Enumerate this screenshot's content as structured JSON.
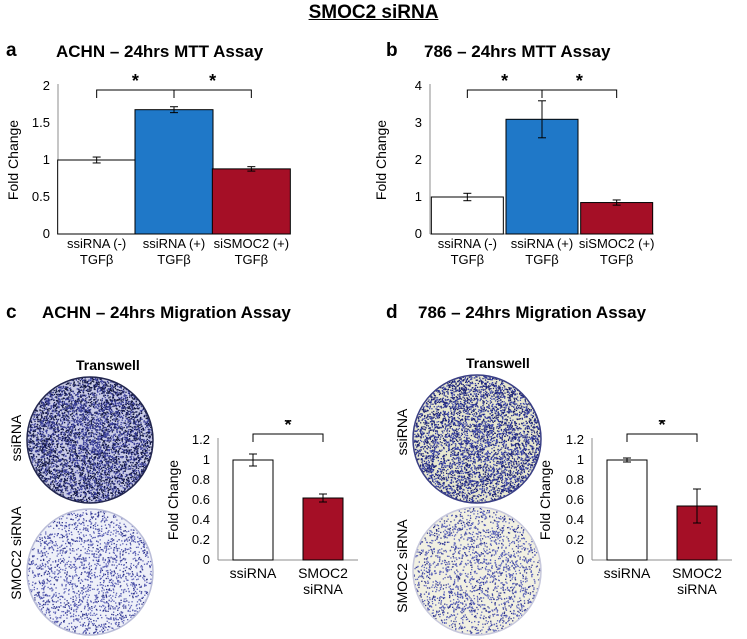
{
  "figure": {
    "main_title": "SMOC2 siRNA",
    "panels": [
      {
        "letter": "a",
        "title": "ACHN – 24hrs MTT Assay"
      },
      {
        "letter": "b",
        "title": "786 – 24hrs MTT Assay"
      },
      {
        "letter": "c",
        "title": "ACHN – 24hrs Migration Assay"
      },
      {
        "letter": "d",
        "title": "786 – 24hrs Migration Assay"
      }
    ],
    "transwell": {
      "header": "Transwell",
      "row_labels": [
        "ssiRNA",
        "SMOC2 siRNA"
      ]
    }
  },
  "colors": {
    "control": "#ffffff",
    "treated_blue": "#1f78c8",
    "treated_red": "#a50f26"
  },
  "chart_data": [
    {
      "type": "bar",
      "panel": "a",
      "categories": [
        [
          "ssiRNA (-)",
          "TGFβ"
        ],
        [
          "ssiRNA (+)",
          "TGFβ"
        ],
        [
          "siSMOC2 (+)",
          "TGFβ"
        ]
      ],
      "values": [
        1.0,
        1.68,
        0.88
      ],
      "errors": [
        0.04,
        0.04,
        0.03
      ],
      "bar_colors": [
        "#ffffff",
        "#1f78c8",
        "#a50f26"
      ],
      "ylabel": "Fold Change",
      "ylim": [
        0,
        2
      ],
      "yticks": [
        0,
        0.5,
        1,
        1.5,
        2
      ],
      "ytick_labels": [
        "0",
        "0.5",
        "1",
        "1.5",
        "2"
      ],
      "significance": [
        {
          "from": 0,
          "to": 1,
          "label": "*"
        },
        {
          "from": 1,
          "to": 2,
          "label": "*"
        }
      ]
    },
    {
      "type": "bar",
      "panel": "b",
      "categories": [
        [
          "ssiRNA (-)",
          "TGFβ"
        ],
        [
          "ssiRNA (+)",
          "TGFβ"
        ],
        [
          "siSMOC2 (+)",
          "TGFβ"
        ]
      ],
      "values": [
        1.0,
        3.1,
        0.85
      ],
      "errors": [
        0.1,
        0.5,
        0.07
      ],
      "bar_colors": [
        "#ffffff",
        "#1f78c8",
        "#a50f26"
      ],
      "ylabel": "Fold Change",
      "ylim": [
        0,
        4
      ],
      "yticks": [
        0,
        1,
        2,
        3,
        4
      ],
      "ytick_labels": [
        "0",
        "1",
        "2",
        "3",
        "4"
      ],
      "significance": [
        {
          "from": 0,
          "to": 1,
          "label": "*"
        },
        {
          "from": 1,
          "to": 2,
          "label": "*"
        }
      ]
    },
    {
      "type": "bar",
      "panel": "c",
      "categories": [
        [
          "ssiRNA"
        ],
        [
          "SMOC2",
          "siRNA"
        ]
      ],
      "values": [
        1.0,
        0.62
      ],
      "errors": [
        0.06,
        0.04
      ],
      "bar_colors": [
        "#ffffff",
        "#a50f26"
      ],
      "ylabel": "Fold Change",
      "ylim": [
        0,
        1.2
      ],
      "yticks": [
        0,
        0.2,
        0.4,
        0.6,
        0.8,
        1,
        1.2
      ],
      "ytick_labels": [
        "0",
        "0.2",
        "0.4",
        "0.6",
        "0.8",
        "1",
        "1.2"
      ],
      "significance": [
        {
          "from": 0,
          "to": 1,
          "label": "*"
        }
      ]
    },
    {
      "type": "bar",
      "panel": "d",
      "categories": [
        [
          "ssiRNA"
        ],
        [
          "SMOC2",
          "siRNA"
        ]
      ],
      "values": [
        1.0,
        0.54
      ],
      "errors": [
        0.02,
        0.17
      ],
      "bar_colors": [
        "#ffffff",
        "#a50f26"
      ],
      "ylabel": "Fold Change",
      "ylim": [
        0,
        1.2
      ],
      "yticks": [
        0,
        0.2,
        0.4,
        0.6,
        0.8,
        1,
        1.2
      ],
      "ytick_labels": [
        "0",
        "0.2",
        "0.4",
        "0.6",
        "0.8",
        "1",
        "1.2"
      ],
      "significance": [
        {
          "from": 0,
          "to": 1,
          "label": "*"
        }
      ]
    }
  ]
}
